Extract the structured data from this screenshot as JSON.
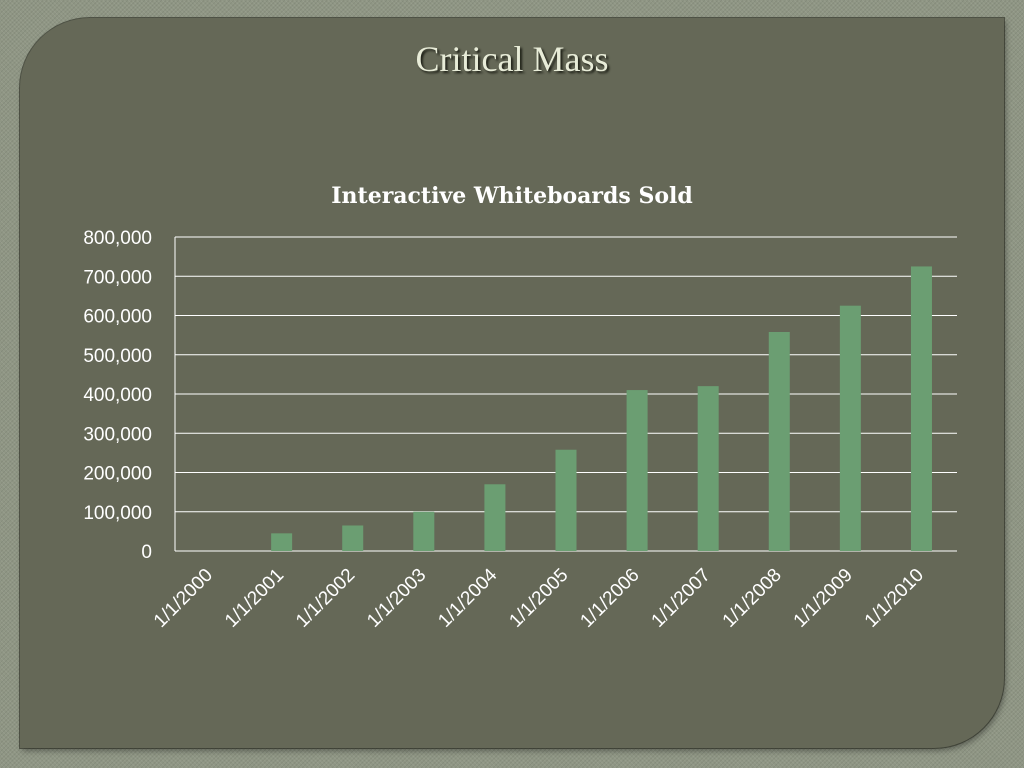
{
  "slide": {
    "title": "Critical Mass"
  },
  "chart_data": {
    "type": "bar",
    "title": "Interactive Whiteboards Sold",
    "xlabel": "",
    "ylabel": "",
    "categories": [
      "1/1/2000",
      "1/1/2001",
      "1/1/2002",
      "1/1/2003",
      "1/1/2004",
      "1/1/2005",
      "1/1/2006",
      "1/1/2007",
      "1/1/2008",
      "1/1/2009",
      "1/1/2010"
    ],
    "values": [
      0,
      45000,
      65000,
      100000,
      170000,
      258000,
      410000,
      420000,
      558000,
      625000,
      725000
    ],
    "ylim": [
      0,
      800000
    ],
    "yticks": [
      "0",
      "100,000",
      "200,000",
      "300,000",
      "400,000",
      "500,000",
      "600,000",
      "700,000",
      "800,000"
    ],
    "grid": true,
    "legend": "none",
    "colors": {
      "bar": "#6b9e72",
      "grid": "#ffffff",
      "text": "#ffffff"
    }
  }
}
